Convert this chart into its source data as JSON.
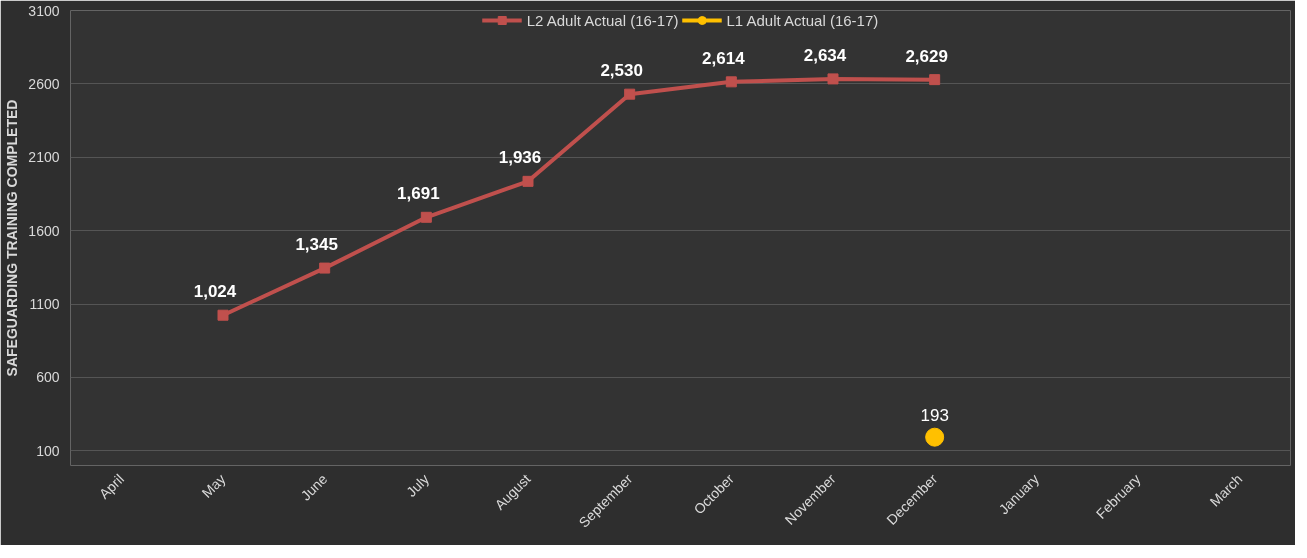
{
  "chart_data": {
    "type": "line",
    "ylabel": "SAFEGUARDING TRAINING COMPLETED",
    "categories": [
      "April",
      "May",
      "June",
      "July",
      "August",
      "September",
      "October",
      "November",
      "December",
      "January",
      "February",
      "March"
    ],
    "series": [
      {
        "name": "L2 Adult Actual (16-17)",
        "color": "#c0504d",
        "marker": "square",
        "values": [
          null,
          1024,
          1345,
          1691,
          1936,
          2530,
          2614,
          2634,
          2629,
          null,
          null,
          null
        ],
        "value_labels": [
          null,
          "1,024",
          "1,345",
          "1,691",
          "1,936",
          "2,530",
          "2,614",
          "2,634",
          "2,629",
          null,
          null,
          null
        ]
      },
      {
        "name": "L1 Adult Actual (16-17)",
        "color": "#ffc000",
        "marker": "circle",
        "values": [
          null,
          null,
          null,
          null,
          null,
          null,
          null,
          null,
          193,
          null,
          null,
          null
        ],
        "value_labels": [
          null,
          null,
          null,
          null,
          null,
          null,
          null,
          null,
          "193",
          null,
          null,
          null
        ]
      }
    ],
    "ylim": [
      0,
      3100
    ],
    "yticks": [
      100,
      600,
      1100,
      1600,
      2100,
      2600,
      3100
    ],
    "grid": "y",
    "legend": "top"
  }
}
